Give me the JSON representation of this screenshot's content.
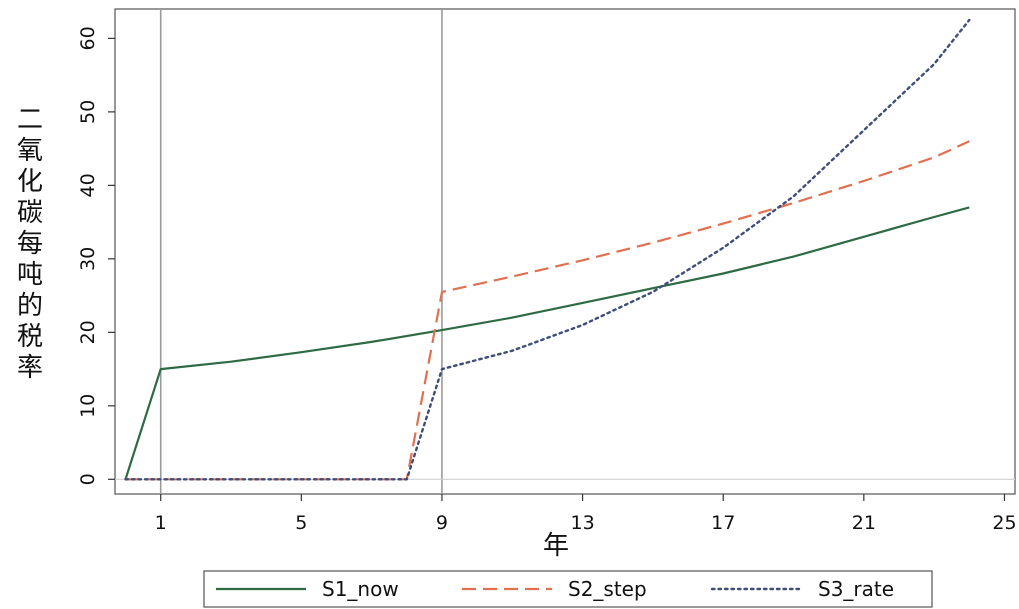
{
  "chart_data": {
    "type": "line",
    "xlabel": "年",
    "ylabel": "二氧化碳每吨的税率",
    "x_ticks": [
      1,
      5,
      9,
      13,
      17,
      21,
      25
    ],
    "y_ticks": [
      0,
      10,
      20,
      30,
      40,
      50,
      60
    ],
    "xlim": [
      -0.3,
      25.3
    ],
    "ylim": [
      -2,
      64
    ],
    "vlines": [
      1,
      9
    ],
    "grid": false,
    "legend_position": "bottom",
    "series": [
      {
        "name": "S1_now",
        "color": "#2e6b45",
        "style": "solid",
        "x": [
          0,
          1,
          3,
          5,
          7,
          9,
          11,
          13,
          15,
          17,
          19,
          21,
          23,
          24
        ],
        "y": [
          0,
          15,
          16,
          17.3,
          18.7,
          20.3,
          22,
          24,
          26,
          28,
          30.3,
          33,
          35.7,
          37
        ]
      },
      {
        "name": "S2_step",
        "color": "#e0704f",
        "style": "dashed",
        "x": [
          0,
          8,
          9,
          11,
          13,
          15,
          17,
          19,
          21,
          23,
          24
        ],
        "y": [
          0,
          0,
          25.5,
          27.6,
          29.8,
          32.2,
          34.8,
          37.6,
          40.6,
          43.8,
          46
        ]
      },
      {
        "name": "S3_rate",
        "color": "#3f4d7a",
        "style": "dotted",
        "x": [
          0,
          8,
          9,
          11,
          13,
          15,
          17,
          19,
          21,
          23,
          24
        ],
        "y": [
          0,
          0,
          15,
          17.5,
          21,
          25.5,
          31.5,
          38.5,
          47.5,
          56.5,
          62.5
        ]
      }
    ]
  }
}
